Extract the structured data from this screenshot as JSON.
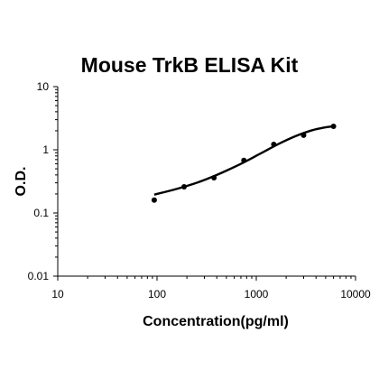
{
  "chart_data": {
    "type": "scatter",
    "title": "Mouse TrkB ELISA Kit",
    "xlabel": "Concentration(pg/ml)",
    "ylabel": "O.D.",
    "x_scale": "log",
    "y_scale": "log",
    "xlim": [
      10,
      10000
    ],
    "ylim": [
      0.01,
      10
    ],
    "x_ticks": [
      10,
      100,
      1000,
      10000
    ],
    "x_tick_labels": [
      "10",
      "100",
      "1000",
      "10000"
    ],
    "y_ticks": [
      0.01,
      0.1,
      1,
      10
    ],
    "y_tick_labels": [
      "0.01",
      "0.1",
      "1",
      "10"
    ],
    "grid": false,
    "series": [
      {
        "x": [
          93.75,
          187.5,
          375,
          750,
          1500,
          3000,
          6000
        ],
        "y": [
          0.16,
          0.26,
          0.36,
          0.68,
          1.22,
          1.7,
          2.35
        ],
        "marker": "circle",
        "color": "#000000"
      }
    ],
    "fit_curve": {
      "x": [
        93.75,
        150,
        250,
        400,
        700,
        1100,
        1700,
        2500,
        3500,
        4500,
        5500,
        6000
      ],
      "y": [
        0.195,
        0.235,
        0.3,
        0.4,
        0.6,
        0.87,
        1.25,
        1.65,
        2.0,
        2.2,
        2.32,
        2.36
      ],
      "color": "#000000"
    }
  }
}
